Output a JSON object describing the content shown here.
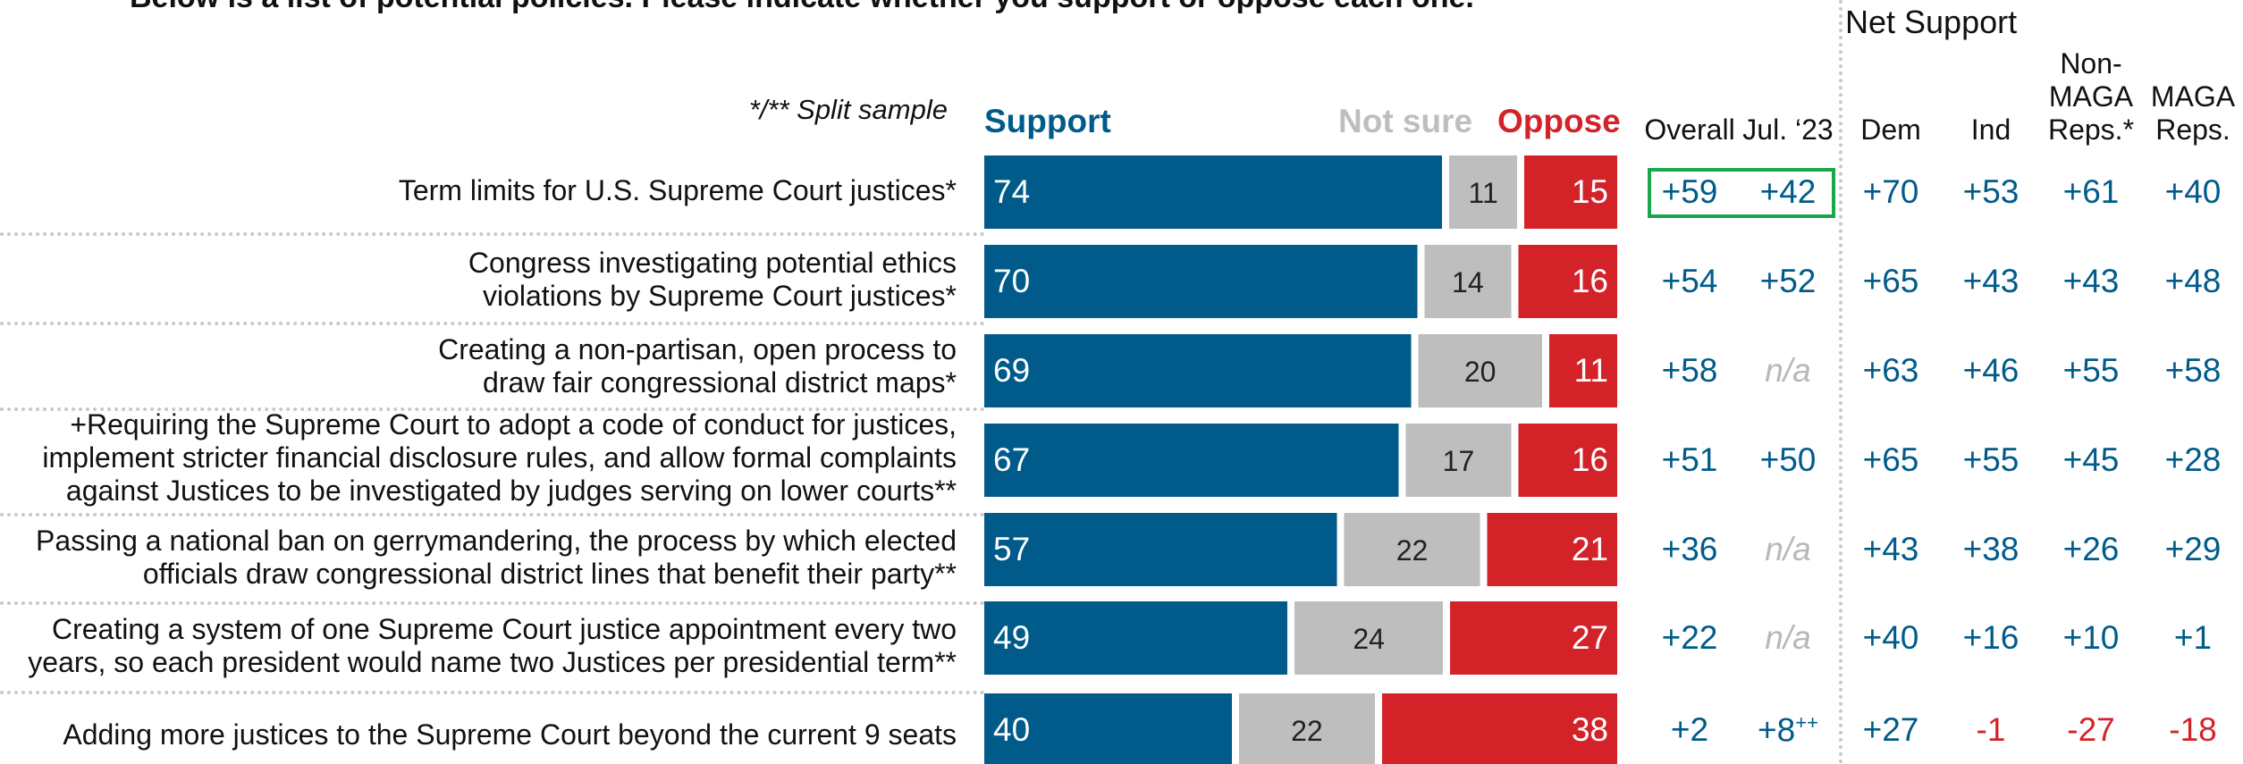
{
  "question": "Below is a list of potential policies. Please indicate whether you support or oppose each one.",
  "split_note": "*/** Split sample",
  "legend": {
    "support": "Support",
    "not_sure": "Not sure",
    "oppose": "Oppose"
  },
  "net_support_title": "Net Support",
  "columns": {
    "overall": "Overall",
    "jul23": "Jul. ‘23",
    "dem": "Dem",
    "ind": "Ind",
    "nonmaga": [
      "Non-",
      "MAGA",
      "Reps.*"
    ],
    "maga": [
      "MAGA",
      "Reps."
    ]
  },
  "colors": {
    "support": "#005b8a",
    "not_sure": "#bebebe",
    "oppose": "#d42229",
    "positive": "#005b8a",
    "negative": "#d42229",
    "na": "#b8b8b8",
    "highlight_box": "#1aa64a"
  },
  "rows": [
    {
      "label": [
        "Term limits for U.S. Supreme Court justices*"
      ],
      "support": "74",
      "not_sure": "11",
      "oppose": "15",
      "overall": "+59",
      "jul23": "+42",
      "dem": "+70",
      "ind": "+53",
      "nonmaga": "+61",
      "maga": "+40"
    },
    {
      "label": [
        "Congress investigating potential ethics",
        "violations by Supreme Court justices*"
      ],
      "support": "70",
      "not_sure": "14",
      "oppose": "16",
      "overall": "+54",
      "jul23": "+52",
      "dem": "+65",
      "ind": "+43",
      "nonmaga": "+43",
      "maga": "+48"
    },
    {
      "label": [
        "Creating a non-partisan, open process to",
        "draw fair congressional district maps*"
      ],
      "support": "69",
      "not_sure": "20",
      "oppose": "11",
      "overall": "+58",
      "jul23": "n/a",
      "dem": "+63",
      "ind": "+46",
      "nonmaga": "+55",
      "maga": "+58"
    },
    {
      "label": [
        "+Requiring the Supreme Court to adopt a code of conduct for justices,",
        "implement stricter financial disclosure rules, and allow formal complaints",
        "against Justices to be investigated by judges serving on lower courts**"
      ],
      "support": "67",
      "not_sure": "17",
      "oppose": "16",
      "overall": "+51",
      "jul23": "+50",
      "dem": "+65",
      "ind": "+55",
      "nonmaga": "+45",
      "maga": "+28"
    },
    {
      "label": [
        "Passing a national ban on gerrymandering, the process by which elected",
        "officials draw congressional district lines that benefit their party**"
      ],
      "support": "57",
      "not_sure": "22",
      "oppose": "21",
      "overall": "+36",
      "jul23": "n/a",
      "dem": "+43",
      "ind": "+38",
      "nonmaga": "+26",
      "maga": "+29"
    },
    {
      "label": [
        "Creating a system of one Supreme Court justice appointment every two",
        "years, so each president would name two Justices per presidential term**"
      ],
      "support": "49",
      "not_sure": "24",
      "oppose": "27",
      "overall": "+22",
      "jul23": "n/a",
      "dem": "+40",
      "ind": "+16",
      "nonmaga": "+10",
      "maga": "+1"
    },
    {
      "label": [
        "Adding more justices to the Supreme Court beyond the current 9 seats"
      ],
      "support": "40",
      "not_sure": "22",
      "oppose": "38",
      "overall": "+2",
      "jul23": "+8++",
      "dem": "+27",
      "ind": "-1",
      "nonmaga": "-27",
      "maga": "-18"
    }
  ],
  "chart_data": {
    "type": "bar",
    "stacked": true,
    "orientation": "horizontal",
    "categories": [
      "Term limits for U.S. Supreme Court justices*",
      "Congress investigating potential ethics violations by Supreme Court justices*",
      "Creating a non-partisan, open process to draw fair congressional district maps*",
      "+Requiring the Supreme Court to adopt a code of conduct for justices, implement stricter financial disclosure rules, and allow formal complaints against Justices to be investigated by judges serving on lower courts**",
      "Passing a national ban on gerrymandering, the process by which elected officials draw congressional district lines that benefit their party**",
      "Creating a system of one Supreme Court justice appointment every two years, so each president would name two Justices per presidential term**",
      "Adding more justices to the Supreme Court beyond the current 9 seats"
    ],
    "series": [
      {
        "name": "Support",
        "values": [
          74,
          70,
          69,
          67,
          57,
          49,
          40
        ]
      },
      {
        "name": "Not sure",
        "values": [
          11,
          14,
          20,
          17,
          22,
          24,
          22
        ]
      },
      {
        "name": "Oppose",
        "values": [
          15,
          16,
          11,
          16,
          21,
          27,
          38
        ]
      }
    ],
    "xlim": [
      0,
      100
    ],
    "legend": "top",
    "grid": false
  }
}
